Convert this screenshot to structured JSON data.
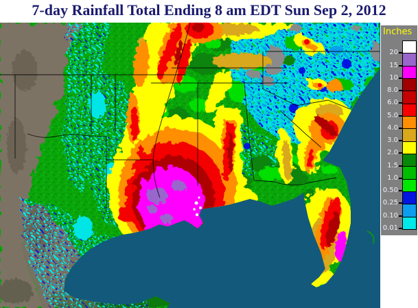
{
  "title": "7-day Rainfall Total Ending 8 am EDT Sun Sep 2, 2012",
  "title_color": "#1A1A6E",
  "legend": {
    "title": "Inches",
    "title_color": "#FFFF00",
    "panel_color": "#808080",
    "label_color": "#EFEFF8",
    "labels": [
      "20",
      "15",
      "10",
      "8.0",
      "6.0",
      "5.0",
      "4.0",
      "3.0",
      "2.0",
      "1.5",
      "1.0",
      "0.50",
      "0.25",
      "0.10",
      "0.01"
    ],
    "colors": [
      "#FFFFFF",
      "#9966CC",
      "#FF00FF",
      "#A00000",
      "#C60000",
      "#F80000",
      "#FF8E00",
      "#D9A81C",
      "#FFFF00",
      "#098909",
      "#00BE00",
      "#00E800",
      "#0016E0",
      "#0C9DEE",
      "#00E9E9"
    ]
  },
  "map": {
    "ocean_color": "#13597C",
    "dry_land_color": "#7D7365",
    "no_data_color": "#8A8A8A"
  }
}
